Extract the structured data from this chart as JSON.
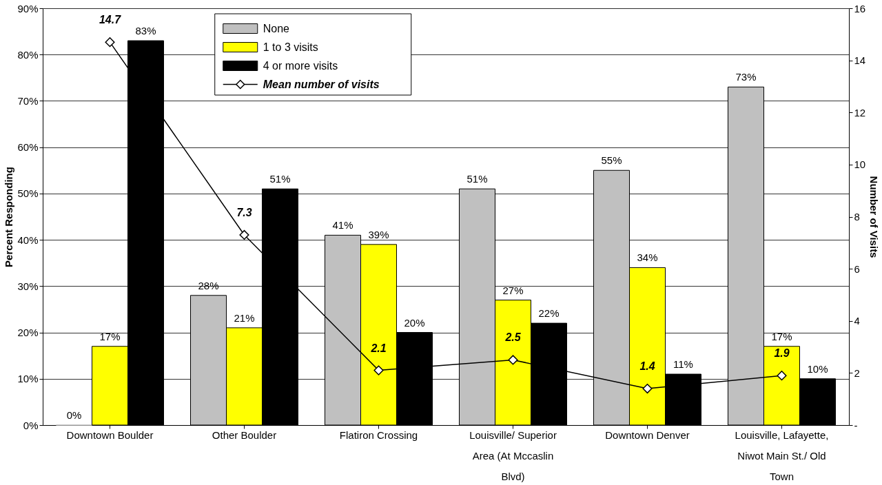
{
  "chart_data": {
    "type": "bar",
    "categories": [
      "Downtown Boulder",
      "Other Boulder",
      "Flatiron Crossing",
      "Louisville/ Superior Area (At Mccaslin Blvd)",
      "Downtown Denver",
      "Louisville, Lafayette, Niwot Main St./ Old Town"
    ],
    "series": [
      {
        "name": "None",
        "color": "#c0c0c0",
        "values": [
          0,
          28,
          41,
          51,
          55,
          73
        ],
        "value_labels": [
          "0%",
          "28%",
          "41%",
          "51%",
          "55%",
          "73%"
        ]
      },
      {
        "name": "1 to 3 visits",
        "color": "#ffff00",
        "values": [
          17,
          21,
          39,
          27,
          34,
          17
        ],
        "value_labels": [
          "17%",
          "21%",
          "39%",
          "27%",
          "34%",
          "17%"
        ]
      },
      {
        "name": "4 or more visits",
        "color": "#000000",
        "values": [
          83,
          51,
          20,
          22,
          11,
          10
        ],
        "value_labels": [
          "83%",
          "51%",
          "20%",
          "22%",
          "11%",
          "10%"
        ]
      },
      {
        "name": "Mean number of visits",
        "type": "line",
        "axis": "y2",
        "color": "#000000",
        "marker": "diamond",
        "values": [
          14.7,
          7.3,
          2.1,
          2.5,
          1.4,
          1.9
        ],
        "value_labels": [
          "14.7",
          "7.3",
          "2.1",
          "2.5",
          "1.4",
          "1.9"
        ]
      }
    ],
    "ylabel": "Percent Responding",
    "y2label": "Number of Visits",
    "ylim": [
      0,
      90
    ],
    "yticks": [
      {
        "value": 0,
        "label": "0%"
      },
      {
        "value": 10,
        "label": "10%"
      },
      {
        "value": 20,
        "label": "20%"
      },
      {
        "value": 30,
        "label": "30%"
      },
      {
        "value": 40,
        "label": "40%"
      },
      {
        "value": 50,
        "label": "50%"
      },
      {
        "value": 60,
        "label": "60%"
      },
      {
        "value": 70,
        "label": "70%"
      },
      {
        "value": 80,
        "label": "80%"
      },
      {
        "value": 90,
        "label": "90%"
      }
    ],
    "y2lim": [
      0,
      16
    ],
    "y2ticks": [
      {
        "value": 0,
        "label": "-"
      },
      2,
      4,
      6,
      8,
      10,
      12,
      14,
      16
    ],
    "grid": "y",
    "legend": "top"
  }
}
